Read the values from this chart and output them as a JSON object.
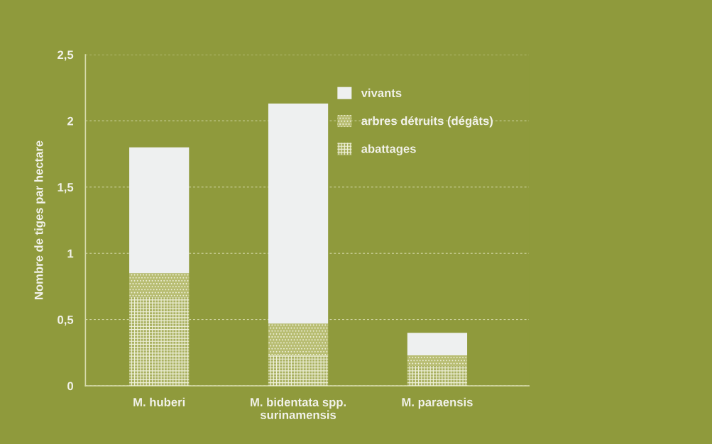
{
  "chart_data": {
    "type": "bar",
    "stacked": true,
    "ylabel": "Nombre de tiges par hectare",
    "categories": [
      "M. huberi",
      "M. bidentata spp.\nsurinamensis",
      "M. paraensis"
    ],
    "series": [
      {
        "name": "abattages",
        "color": "#a9b060",
        "values": [
          0.67,
          0.23,
          0.15
        ]
      },
      {
        "name": "arbres détruits (dégâts)",
        "color": "#b8bd72",
        "values": [
          0.18,
          0.24,
          0.08
        ]
      },
      {
        "name": "vivants",
        "color": "#eef0f0",
        "values": [
          0.95,
          1.66,
          0.17
        ]
      }
    ],
    "ylim": [
      0,
      2.5
    ],
    "yticks": [
      0,
      {
        "value": 0.5,
        "label": "0,5"
      },
      1,
      {
        "value": 1.5,
        "label": "1,5"
      },
      2,
      {
        "value": 2.5,
        "label": "2,5"
      }
    ],
    "grid": "y",
    "legend": "top right"
  }
}
